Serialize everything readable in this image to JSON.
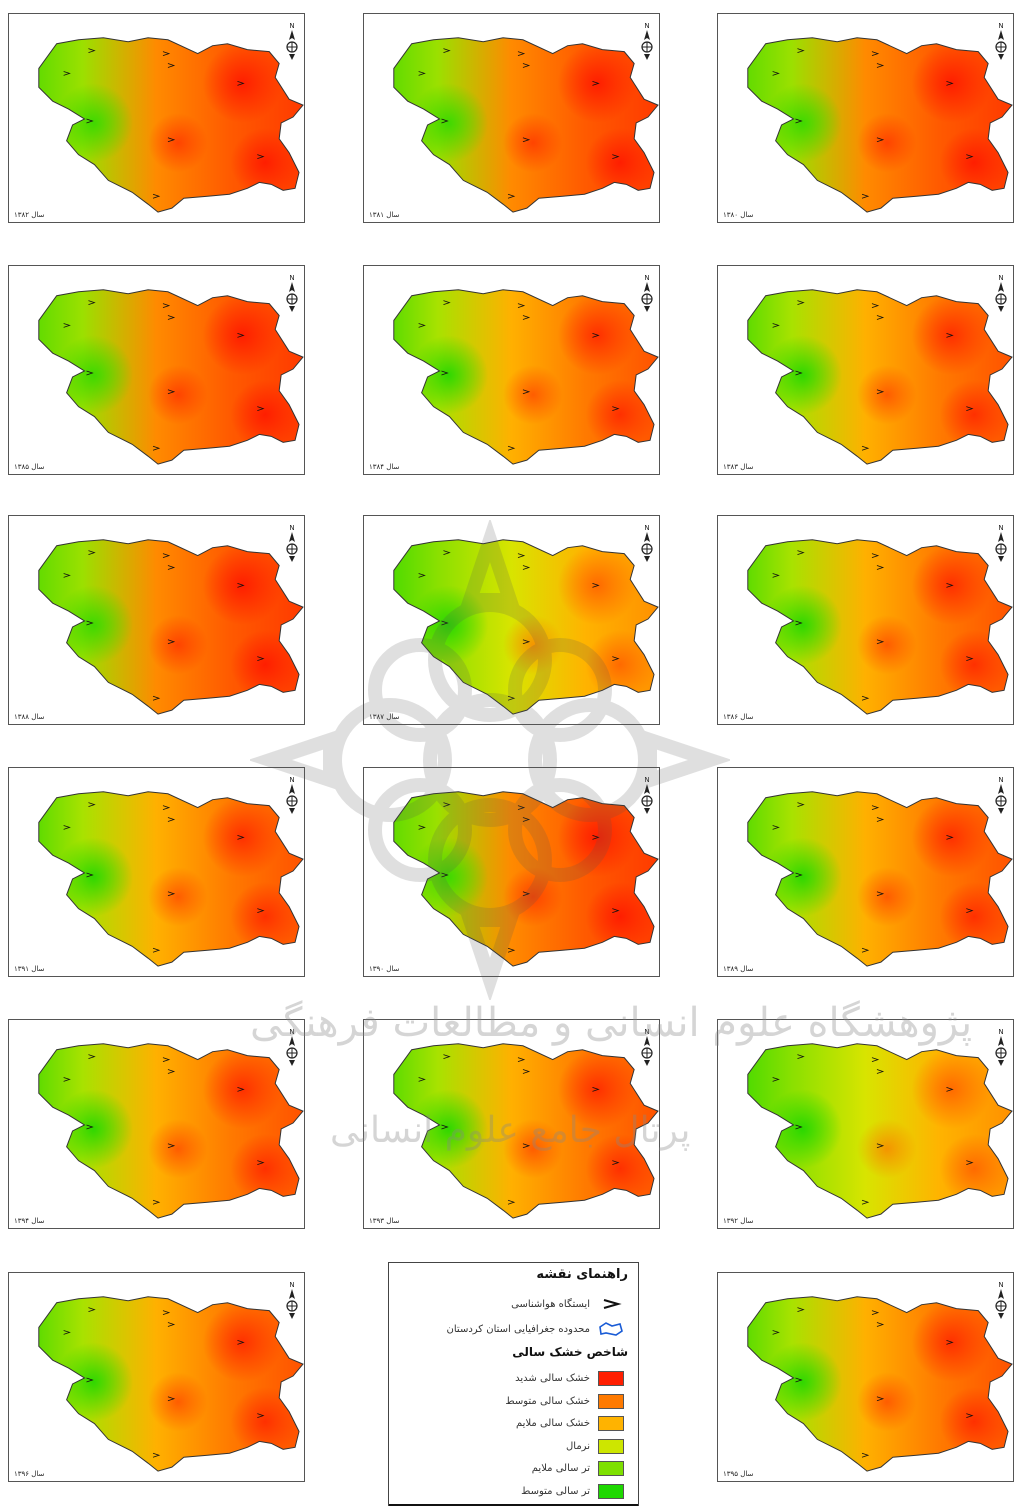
{
  "colors": {
    "severe_drought": "#ff1e00",
    "moderate_drought": "#ff7a00",
    "mild_drought": "#ffb300",
    "normal": "#cde600",
    "mild_wet": "#7ee000",
    "moderate_wet": "#1ed800"
  },
  "panels": [
    {
      "year": "سال ۱۳۸۲",
      "palette": "hot"
    },
    {
      "year": "سال ۱۳۸۱",
      "palette": "hot"
    },
    {
      "year": "سال ۱۳۸۰",
      "palette": "hot"
    },
    {
      "year": "سال ۱۳۸۵",
      "palette": "hot"
    },
    {
      "year": "سال ۱۳۸۴",
      "palette": "warm"
    },
    {
      "year": "سال ۱۳۸۳",
      "palette": "warm"
    },
    {
      "year": "سال ۱۳۸۸",
      "palette": "hot"
    },
    {
      "year": "سال ۱۳۸۷",
      "palette": "mild"
    },
    {
      "year": "سال ۱۳۸۶",
      "palette": "warm"
    },
    {
      "year": "سال ۱۳۹۱",
      "palette": "warm"
    },
    {
      "year": "سال ۱۳۹۰",
      "palette": "hot"
    },
    {
      "year": "سال ۱۳۸۹",
      "palette": "warm"
    },
    {
      "year": "سال ۱۳۹۴",
      "palette": "warm"
    },
    {
      "year": "سال ۱۳۹۳",
      "palette": "warm"
    },
    {
      "year": "سال ۱۳۹۲",
      "palette": "mild"
    },
    {
      "year": "سال ۱۳۹۶",
      "palette": "warm"
    },
    {
      "year": "سال ۱۳۹۵",
      "palette": "warm"
    }
  ],
  "legend": {
    "title": "راهنمای نقشه",
    "station": "ایستگاه هواشناسی",
    "boundary": "محدوده جغرافیایی استان کردستان",
    "index_title": "شاخص خشک سالی",
    "classes": [
      {
        "label": "خشک سالی شدید",
        "color": "#ff1e00"
      },
      {
        "label": "خشک سالی متوسط",
        "color": "#ff7a00"
      },
      {
        "label": "خشک سالی ملایم",
        "color": "#ffb300"
      },
      {
        "label": "نرمال",
        "color": "#cde600"
      },
      {
        "label": "تر سالی ملایم",
        "color": "#7ee000"
      },
      {
        "label": "تر سالی متوسط",
        "color": "#1ed800"
      }
    ]
  },
  "watermark": {
    "line1": "پژوهشگاه علوم انسانی و مطالعات فرهنگی",
    "line2": "پرتال جامع علوم انسانی"
  }
}
